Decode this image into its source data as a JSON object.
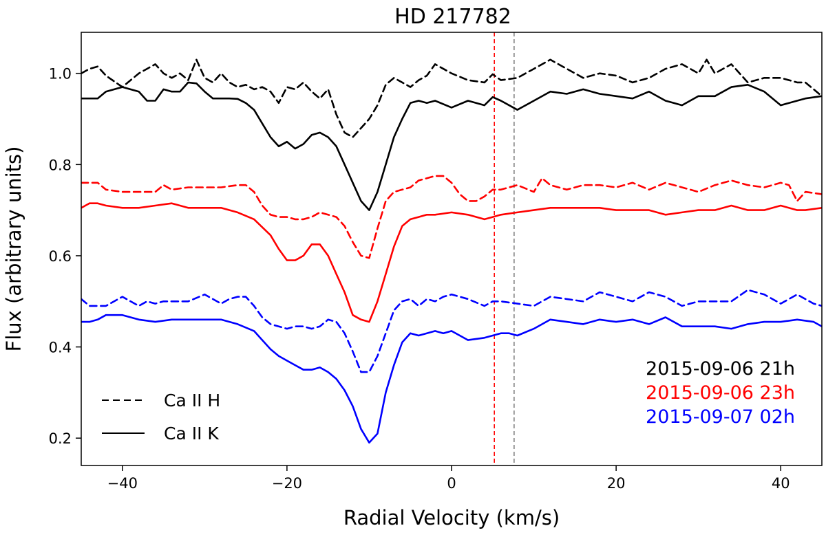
{
  "chart_data": {
    "type": "line",
    "title": "HD 217782",
    "xlabel": "Radial Velocity (km/s)",
    "ylabel": "Flux (arbitrary units)",
    "xlim": [
      -45,
      45
    ],
    "ylim": [
      0.14,
      1.09
    ],
    "xticks": [
      -40,
      -20,
      0,
      20,
      40
    ],
    "yticks": [
      0.2,
      0.4,
      0.6,
      0.8,
      1.0
    ],
    "xtick_labels": [
      "−40",
      "−20",
      "0",
      "20",
      "40"
    ],
    "ytick_labels": [
      "0.2",
      "0.4",
      "0.6",
      "0.8",
      "1.0"
    ],
    "grid": false,
    "vlines": [
      {
        "x": 5.2,
        "color": "#ff0000",
        "style": "dashed"
      },
      {
        "x": 7.6,
        "color": "#808080",
        "style": "dashed"
      }
    ],
    "line_legend": {
      "placement": "lower-left",
      "entries": [
        {
          "label": "Ca II H",
          "style": "dashed"
        },
        {
          "label": "Ca II K",
          "style": "solid"
        }
      ]
    },
    "epoch_legend": {
      "placement": "lower-right",
      "entries": [
        {
          "label": "2015-09-06 21h",
          "color": "#000000"
        },
        {
          "label": "2015-09-06 23h",
          "color": "#ff0000"
        },
        {
          "label": "2015-09-07 02h",
          "color": "#0000ff"
        }
      ]
    },
    "series": [
      {
        "line": "Ca II H",
        "epoch": "2015-09-06 21h",
        "color": "#000000",
        "style": "dashed",
        "x": [
          -45,
          -44,
          -43,
          -42,
          -40,
          -38,
          -37,
          -36,
          -35,
          -34,
          -33,
          -32,
          -31,
          -30,
          -29,
          -28,
          -27,
          -26,
          -25,
          -24,
          -23,
          -22,
          -21,
          -20,
          -19,
          -18,
          -17,
          -16,
          -15,
          -14,
          -13,
          -12,
          -11,
          -10,
          -9,
          -8,
          -7,
          -6,
          -5,
          -4,
          -3,
          -2,
          0,
          2,
          4,
          5,
          6,
          8,
          10,
          12,
          14,
          16,
          18,
          20,
          22,
          24,
          26,
          28,
          30,
          31,
          32,
          34,
          36,
          38,
          40,
          42,
          43,
          45
        ],
        "y": [
          1.0,
          1.01,
          1.015,
          0.995,
          0.97,
          1.0,
          1.01,
          1.02,
          1.0,
          0.99,
          1.0,
          0.985,
          1.03,
          0.99,
          0.98,
          1.0,
          0.98,
          0.97,
          0.975,
          0.965,
          0.97,
          0.96,
          0.935,
          0.97,
          0.965,
          0.98,
          0.96,
          0.945,
          0.965,
          0.91,
          0.87,
          0.86,
          0.88,
          0.9,
          0.93,
          0.975,
          0.99,
          0.98,
          0.97,
          0.985,
          0.995,
          1.02,
          1.0,
          0.985,
          0.98,
          0.998,
          0.985,
          0.99,
          1.01,
          1.03,
          1.01,
          0.99,
          1.0,
          0.995,
          0.98,
          0.99,
          1.01,
          1.02,
          1.0,
          1.03,
          1.0,
          1.02,
          0.98,
          0.99,
          0.99,
          0.98,
          0.98,
          0.95
        ]
      },
      {
        "line": "Ca II K",
        "epoch": "2015-09-06 21h",
        "color": "#000000",
        "style": "solid",
        "x": [
          -45,
          -43,
          -42,
          -40,
          -38,
          -37,
          -36,
          -35,
          -34,
          -33,
          -32,
          -31,
          -30,
          -29,
          -28,
          -27,
          -26,
          -25,
          -24,
          -23,
          -22,
          -21,
          -20,
          -19,
          -18,
          -17,
          -16,
          -15,
          -14,
          -13,
          -12,
          -11,
          -10,
          -9,
          -8,
          -7,
          -6,
          -5,
          -4,
          -3,
          -2,
          0,
          2,
          4,
          5,
          6,
          8,
          10,
          12,
          14,
          16,
          18,
          20,
          22,
          24,
          26,
          27,
          28,
          30,
          32,
          34,
          36,
          38,
          40,
          42,
          43,
          45
        ],
        "y": [
          0.945,
          0.945,
          0.96,
          0.97,
          0.96,
          0.94,
          0.94,
          0.965,
          0.96,
          0.96,
          0.98,
          0.978,
          0.96,
          0.945,
          0.945,
          0.945,
          0.944,
          0.935,
          0.92,
          0.89,
          0.86,
          0.84,
          0.85,
          0.835,
          0.845,
          0.865,
          0.87,
          0.86,
          0.84,
          0.8,
          0.76,
          0.72,
          0.7,
          0.74,
          0.8,
          0.86,
          0.9,
          0.935,
          0.94,
          0.935,
          0.94,
          0.925,
          0.94,
          0.93,
          0.948,
          0.94,
          0.92,
          0.94,
          0.96,
          0.955,
          0.965,
          0.955,
          0.95,
          0.945,
          0.96,
          0.94,
          0.935,
          0.93,
          0.95,
          0.95,
          0.97,
          0.975,
          0.96,
          0.93,
          0.94,
          0.945,
          0.95
        ]
      },
      {
        "line": "Ca II H",
        "epoch": "2015-09-06 23h",
        "color": "#ff0000",
        "style": "dashed",
        "x": [
          -45,
          -43,
          -42,
          -40,
          -38,
          -36,
          -35,
          -34,
          -32,
          -30,
          -28,
          -26,
          -25,
          -24,
          -23,
          -22,
          -21,
          -20,
          -19,
          -18,
          -17,
          -16,
          -15,
          -14,
          -13,
          -12,
          -11,
          -10,
          -9,
          -8,
          -7,
          -6,
          -5,
          -4,
          -3,
          -2,
          -1,
          0,
          1,
          2,
          3,
          4,
          5,
          6,
          8,
          10,
          11,
          12,
          14,
          16,
          18,
          20,
          22,
          24,
          26,
          28,
          30,
          32,
          34,
          36,
          38,
          40,
          41,
          42,
          43,
          45
        ],
        "y": [
          0.76,
          0.76,
          0.745,
          0.74,
          0.74,
          0.74,
          0.755,
          0.745,
          0.75,
          0.75,
          0.75,
          0.755,
          0.755,
          0.74,
          0.71,
          0.69,
          0.685,
          0.685,
          0.68,
          0.68,
          0.685,
          0.695,
          0.69,
          0.685,
          0.665,
          0.63,
          0.6,
          0.595,
          0.66,
          0.72,
          0.74,
          0.745,
          0.75,
          0.765,
          0.77,
          0.775,
          0.775,
          0.76,
          0.735,
          0.72,
          0.72,
          0.73,
          0.745,
          0.745,
          0.755,
          0.74,
          0.77,
          0.755,
          0.745,
          0.755,
          0.755,
          0.75,
          0.76,
          0.745,
          0.76,
          0.75,
          0.74,
          0.755,
          0.765,
          0.755,
          0.75,
          0.76,
          0.755,
          0.72,
          0.74,
          0.735
        ]
      },
      {
        "line": "Ca II K",
        "epoch": "2015-09-06 23h",
        "color": "#ff0000",
        "style": "solid",
        "x": [
          -45,
          -44,
          -43,
          -42,
          -40,
          -38,
          -36,
          -34,
          -32,
          -30,
          -28,
          -26,
          -24,
          -22,
          -21,
          -20,
          -19,
          -18,
          -17,
          -16,
          -15,
          -14,
          -13,
          -12,
          -11,
          -10,
          -9,
          -8,
          -7,
          -6,
          -5,
          -4,
          -3,
          -2,
          0,
          2,
          4,
          5,
          6,
          8,
          10,
          12,
          14,
          16,
          18,
          20,
          22,
          24,
          26,
          28,
          30,
          32,
          34,
          36,
          38,
          40,
          42,
          43,
          45
        ],
        "y": [
          0.705,
          0.715,
          0.715,
          0.71,
          0.705,
          0.705,
          0.71,
          0.715,
          0.705,
          0.705,
          0.705,
          0.695,
          0.68,
          0.645,
          0.615,
          0.59,
          0.59,
          0.6,
          0.625,
          0.625,
          0.6,
          0.56,
          0.52,
          0.47,
          0.46,
          0.455,
          0.5,
          0.56,
          0.62,
          0.665,
          0.68,
          0.685,
          0.69,
          0.69,
          0.695,
          0.69,
          0.68,
          0.685,
          0.69,
          0.695,
          0.7,
          0.705,
          0.705,
          0.705,
          0.705,
          0.7,
          0.7,
          0.7,
          0.69,
          0.695,
          0.7,
          0.7,
          0.71,
          0.7,
          0.7,
          0.71,
          0.7,
          0.7,
          0.705
        ]
      },
      {
        "line": "Ca II H",
        "epoch": "2015-09-07 02h",
        "color": "#0000ff",
        "style": "dashed",
        "x": [
          -45,
          -44,
          -43,
          -42,
          -40,
          -38,
          -37,
          -36,
          -35,
          -34,
          -32,
          -30,
          -28,
          -27,
          -26,
          -25,
          -24,
          -23,
          -22,
          -21,
          -20,
          -19,
          -18,
          -17,
          -16,
          -15,
          -14,
          -13,
          -12,
          -11,
          -10,
          -9,
          -8,
          -7,
          -6,
          -5,
          -4,
          -3,
          -2,
          -1,
          0,
          2,
          4,
          5,
          6,
          8,
          10,
          12,
          14,
          16,
          18,
          20,
          22,
          24,
          26,
          28,
          30,
          32,
          34,
          36,
          38,
          40,
          42,
          44,
          45
        ],
        "y": [
          0.505,
          0.49,
          0.49,
          0.49,
          0.51,
          0.49,
          0.5,
          0.495,
          0.5,
          0.5,
          0.5,
          0.515,
          0.495,
          0.505,
          0.51,
          0.51,
          0.49,
          0.465,
          0.45,
          0.445,
          0.44,
          0.445,
          0.445,
          0.44,
          0.445,
          0.46,
          0.455,
          0.43,
          0.39,
          0.345,
          0.345,
          0.38,
          0.43,
          0.48,
          0.5,
          0.505,
          0.49,
          0.505,
          0.5,
          0.51,
          0.515,
          0.505,
          0.49,
          0.5,
          0.5,
          0.495,
          0.49,
          0.51,
          0.505,
          0.5,
          0.52,
          0.51,
          0.5,
          0.52,
          0.51,
          0.49,
          0.5,
          0.5,
          0.5,
          0.525,
          0.515,
          0.495,
          0.515,
          0.495,
          0.49
        ]
      },
      {
        "line": "Ca II K",
        "epoch": "2015-09-07 02h",
        "color": "#0000ff",
        "style": "solid",
        "x": [
          -45,
          -44,
          -43,
          -42,
          -40,
          -38,
          -36,
          -34,
          -32,
          -30,
          -28,
          -26,
          -24,
          -23,
          -22,
          -21,
          -20,
          -19,
          -18,
          -17,
          -16,
          -15,
          -14,
          -13,
          -12,
          -11,
          -10,
          -9,
          -8,
          -7,
          -6,
          -5,
          -4,
          -3,
          -2,
          -1,
          0,
          2,
          4,
          5,
          6,
          7,
          8,
          10,
          12,
          14,
          16,
          18,
          20,
          22,
          24,
          26,
          28,
          30,
          32,
          34,
          36,
          38,
          40,
          42,
          44,
          45
        ],
        "y": [
          0.455,
          0.455,
          0.46,
          0.47,
          0.47,
          0.46,
          0.455,
          0.46,
          0.46,
          0.46,
          0.46,
          0.45,
          0.435,
          0.415,
          0.395,
          0.38,
          0.37,
          0.36,
          0.35,
          0.35,
          0.355,
          0.345,
          0.33,
          0.305,
          0.27,
          0.22,
          0.19,
          0.21,
          0.3,
          0.36,
          0.41,
          0.43,
          0.425,
          0.43,
          0.435,
          0.43,
          0.435,
          0.415,
          0.42,
          0.425,
          0.43,
          0.43,
          0.425,
          0.44,
          0.46,
          0.455,
          0.45,
          0.46,
          0.455,
          0.46,
          0.45,
          0.465,
          0.445,
          0.445,
          0.445,
          0.44,
          0.45,
          0.455,
          0.455,
          0.46,
          0.455,
          0.445
        ]
      }
    ]
  }
}
